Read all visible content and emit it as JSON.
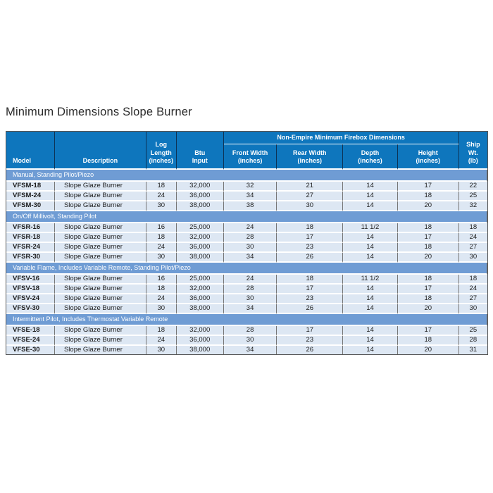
{
  "colors": {
    "header_blue": "#0e76bd",
    "section_blue": "#6f9cd4",
    "row_bg": "#dde7f3",
    "grid_gray": "#767676",
    "header_grid": "#0d3356",
    "title_text": "#2b2b2b"
  },
  "page": {
    "title": "Minimum Dimensions Slope Burner"
  },
  "table": {
    "group_header": "Non-Empire Minimum Firebox Dimensions",
    "columns": [
      "Model",
      "Description",
      "Log\nLength\n(inches)",
      "Btu\nInput",
      "Front Width\n(inches)",
      "Rear Width\n(inches)",
      "Depth\n(inches)",
      "Height\n(inches)",
      "Ship\nWt.\n(lb)"
    ],
    "sections": [
      {
        "title": "Manual, Standing Pilot/Piezo",
        "rows": [
          [
            "VFSM-18",
            "Slope Glaze Burner",
            "18",
            "32,000",
            "32",
            "21",
            "14",
            "17",
            "22"
          ],
          [
            "VFSM-24",
            "Slope Glaze Burner",
            "24",
            "36,000",
            "34",
            "27",
            "14",
            "18",
            "25"
          ],
          [
            "VFSM-30",
            "Slope Glaze Burner",
            "30",
            "38,000",
            "38",
            "30",
            "14",
            "20",
            "32"
          ]
        ]
      },
      {
        "title": "On/Off Millivolt, Standing Pilot",
        "rows": [
          [
            "VFSR-16",
            "Slope Glaze Burner",
            "16",
            "25,000",
            "24",
            "18",
            "11 1/2",
            "18",
            "18"
          ],
          [
            "VFSR-18",
            "Slope Glaze Burner",
            "18",
            "32,000",
            "28",
            "17",
            "14",
            "17",
            "24"
          ],
          [
            "VFSR-24",
            "Slope Glaze Burner",
            "24",
            "36,000",
            "30",
            "23",
            "14",
            "18",
            "27"
          ],
          [
            "VFSR-30",
            "Slope Glaze Burner",
            "30",
            "38,000",
            "34",
            "26",
            "14",
            "20",
            "30"
          ]
        ]
      },
      {
        "title": "Variable Flame, Includes Variable Remote, Standing Pilot/Piezo",
        "rows": [
          [
            "VFSV-16",
            "Slope Glaze Burner",
            "16",
            "25,000",
            "24",
            "18",
            "11 1/2",
            "18",
            "18"
          ],
          [
            "VFSV-18",
            "Slope Glaze Burner",
            "18",
            "32,000",
            "28",
            "17",
            "14",
            "17",
            "24"
          ],
          [
            "VFSV-24",
            "Slope Glaze Burner",
            "24",
            "36,000",
            "30",
            "23",
            "14",
            "18",
            "27"
          ],
          [
            "VFSV-30",
            "Slope Glaze Burner",
            "30",
            "38,000",
            "34",
            "26",
            "14",
            "20",
            "30"
          ]
        ]
      },
      {
        "title": "Intermittent Pilot, Includes Thermostat Variable Remote",
        "rows": [
          [
            "VFSE-18",
            "Slope Glaze Burner",
            "18",
            "32,000",
            "28",
            "17",
            "14",
            "17",
            "25"
          ],
          [
            "VFSE-24",
            "Slope Glaze Burner",
            "24",
            "36,000",
            "30",
            "23",
            "14",
            "18",
            "28"
          ],
          [
            "VFSE-30",
            "Slope Glaze Burner",
            "30",
            "38,000",
            "34",
            "26",
            "14",
            "20",
            "31"
          ]
        ]
      }
    ]
  }
}
